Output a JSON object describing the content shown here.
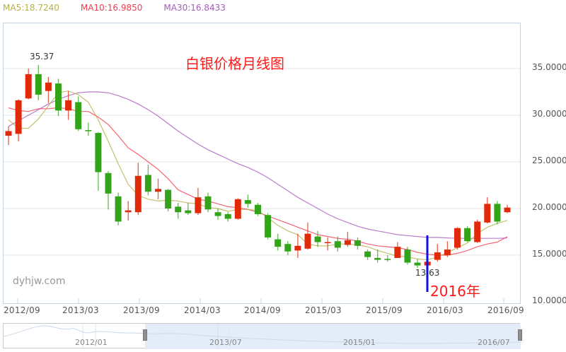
{
  "legend": {
    "ma5": {
      "label": "MA5:18.7240",
      "color": "#b5b04a"
    },
    "ma10": {
      "label": "MA10:16.9850",
      "color": "#f03c50"
    },
    "ma30": {
      "label": "MA30:16.8433",
      "color": "#a65bbd"
    }
  },
  "annotations": {
    "title": "白银价格月线图",
    "high_label": "35.37",
    "low_label": "13.63",
    "year_label": "2016年",
    "watermark": "dyhjw.com"
  },
  "x_axis_labels": [
    "2012/09",
    "2013/03",
    "2013/09",
    "2014/03",
    "2014/09",
    "2015/03",
    "2015/09",
    "2016/03",
    "2016/09"
  ],
  "y_axis_labels": [
    "35.0000",
    "30.0000",
    "25.0000",
    "20.0000",
    "15.0000",
    "10.0000"
  ],
  "navigator": {
    "labels": [
      "2012/01",
      "2013/07",
      "2015/01",
      "2016/07"
    ]
  },
  "colors": {
    "up": "#e02a0a",
    "down": "#33a31a",
    "grid": "#e6e6e6",
    "frame": "#c5d3e0",
    "title": "#ff1a1a",
    "marker": "#0a10e8"
  },
  "chart_data": {
    "type": "candlestick",
    "title": "白银价格月线图",
    "xlabel": "",
    "ylabel": "",
    "ylim": [
      10,
      37
    ],
    "grid": true,
    "x_ticks": [
      "2012/09",
      "2013/03",
      "2013/09",
      "2014/03",
      "2014/09",
      "2015/03",
      "2015/09",
      "2016/03",
      "2016/09"
    ],
    "y_ticks": [
      10,
      15,
      20,
      25,
      30,
      35
    ],
    "legend": [
      "MA5:18.7240",
      "MA10:16.9850",
      "MA30:16.8433"
    ],
    "annotations": [
      {
        "text": "35.37",
        "type": "max"
      },
      {
        "text": "13.63",
        "type": "min"
      },
      {
        "text": "2016年",
        "type": "marker"
      }
    ],
    "candles": [
      {
        "o": 27.8,
        "c": 28.3,
        "h": 28.8,
        "l": 26.8
      },
      {
        "o": 28.0,
        "c": 31.6,
        "h": 31.7,
        "l": 27.2
      },
      {
        "o": 31.8,
        "c": 34.4,
        "h": 35.0,
        "l": 31.7
      },
      {
        "o": 34.4,
        "c": 32.2,
        "h": 35.37,
        "l": 31.6
      },
      {
        "o": 32.6,
        "c": 33.5,
        "h": 34.1,
        "l": 31.3
      },
      {
        "o": 33.4,
        "c": 30.5,
        "h": 33.9,
        "l": 29.9
      },
      {
        "o": 30.5,
        "c": 31.6,
        "h": 32.6,
        "l": 29.5
      },
      {
        "o": 31.4,
        "c": 28.5,
        "h": 32.0,
        "l": 28.3
      },
      {
        "o": 28.4,
        "c": 28.3,
        "h": 29.2,
        "l": 27.8
      },
      {
        "o": 28.1,
        "c": 23.9,
        "h": 28.2,
        "l": 21.9
      },
      {
        "o": 23.8,
        "c": 21.6,
        "h": 24.0,
        "l": 19.9
      },
      {
        "o": 21.3,
        "c": 18.6,
        "h": 21.7,
        "l": 18.2
      },
      {
        "o": 19.6,
        "c": 19.8,
        "h": 20.8,
        "l": 18.7
      },
      {
        "o": 19.6,
        "c": 23.5,
        "h": 24.9,
        "l": 19.3
      },
      {
        "o": 23.6,
        "c": 21.8,
        "h": 24.7,
        "l": 21.4
      },
      {
        "o": 21.8,
        "c": 22.1,
        "h": 23.2,
        "l": 21.0
      },
      {
        "o": 22.0,
        "c": 20.0,
        "h": 22.1,
        "l": 19.7
      },
      {
        "o": 20.2,
        "c": 19.6,
        "h": 20.6,
        "l": 18.9
      },
      {
        "o": 19.8,
        "c": 19.5,
        "h": 20.6,
        "l": 19.3
      },
      {
        "o": 19.5,
        "c": 21.2,
        "h": 22.2,
        "l": 19.3
      },
      {
        "o": 21.3,
        "c": 19.9,
        "h": 21.7,
        "l": 19.6
      },
      {
        "o": 19.6,
        "c": 19.2,
        "h": 20.0,
        "l": 18.8
      },
      {
        "o": 19.4,
        "c": 18.9,
        "h": 19.6,
        "l": 18.6
      },
      {
        "o": 18.9,
        "c": 21.0,
        "h": 21.1,
        "l": 18.8
      },
      {
        "o": 20.9,
        "c": 20.5,
        "h": 21.5,
        "l": 20.1
      },
      {
        "o": 20.4,
        "c": 19.4,
        "h": 20.6,
        "l": 19.2
      },
      {
        "o": 19.3,
        "c": 16.9,
        "h": 19.5,
        "l": 16.7
      },
      {
        "o": 16.7,
        "c": 15.9,
        "h": 17.3,
        "l": 15.5
      },
      {
        "o": 16.2,
        "c": 15.4,
        "h": 16.5,
        "l": 15.0
      },
      {
        "o": 15.5,
        "c": 16.0,
        "h": 17.3,
        "l": 14.7
      },
      {
        "o": 15.7,
        "c": 17.3,
        "h": 18.5,
        "l": 15.6
      },
      {
        "o": 17.0,
        "c": 16.4,
        "h": 17.6,
        "l": 15.9
      },
      {
        "o": 16.3,
        "c": 16.4,
        "h": 16.9,
        "l": 15.5
      },
      {
        "o": 16.5,
        "c": 15.8,
        "h": 17.0,
        "l": 15.4
      },
      {
        "o": 16.1,
        "c": 16.6,
        "h": 17.5,
        "l": 15.9
      },
      {
        "o": 16.6,
        "c": 16.0,
        "h": 16.9,
        "l": 15.6
      },
      {
        "o": 15.4,
        "c": 14.8,
        "h": 15.6,
        "l": 14.5
      },
      {
        "o": 14.7,
        "c": 14.5,
        "h": 15.6,
        "l": 14.2
      },
      {
        "o": 14.6,
        "c": 14.5,
        "h": 15.0,
        "l": 14.3
      },
      {
        "o": 14.7,
        "c": 15.9,
        "h": 16.4,
        "l": 14.7
      },
      {
        "o": 15.6,
        "c": 14.2,
        "h": 15.9,
        "l": 14.0
      },
      {
        "o": 14.2,
        "c": 13.9,
        "h": 14.6,
        "l": 13.63
      },
      {
        "o": 13.9,
        "c": 14.3,
        "h": 14.8,
        "l": 13.8
      },
      {
        "o": 14.5,
        "c": 15.3,
        "h": 16.2,
        "l": 14.3
      },
      {
        "o": 15.0,
        "c": 15.6,
        "h": 16.5,
        "l": 14.8
      },
      {
        "o": 15.8,
        "c": 17.9,
        "h": 18.0,
        "l": 15.6
      },
      {
        "o": 17.9,
        "c": 16.5,
        "h": 18.1,
        "l": 16.4
      },
      {
        "o": 16.4,
        "c": 18.6,
        "h": 18.8,
        "l": 16.3
      },
      {
        "o": 18.5,
        "c": 20.5,
        "h": 21.2,
        "l": 18.4
      },
      {
        "o": 20.5,
        "c": 18.6,
        "h": 20.8,
        "l": 18.3
      },
      {
        "o": 19.6,
        "c": 20.1,
        "h": 20.4,
        "l": 19.5
      }
    ],
    "series": [
      {
        "name": "MA5",
        "color": "#b5b04a",
        "values": [
          29.5,
          28.6,
          28.6,
          29.6,
          31.0,
          32.4,
          32.6,
          32.2,
          31.4,
          29.5,
          27.2,
          24.8,
          22.6,
          21.4,
          21.0,
          20.8,
          20.9,
          20.8,
          20.6,
          20.5,
          20.1,
          20.0,
          19.7,
          19.9,
          19.9,
          19.8,
          19.0,
          18.2,
          17.6,
          17.2,
          16.2,
          16.0,
          16.0,
          16.2,
          16.2,
          16.1,
          15.9,
          15.5,
          15.2,
          14.9,
          14.8,
          14.6,
          14.5,
          14.8,
          15.3,
          15.8,
          16.3,
          17.3,
          18.0,
          18.4,
          18.72
        ]
      },
      {
        "name": "MA10",
        "color": "#f03c50",
        "values": [
          30.8,
          30.5,
          30.4,
          30.7,
          30.7,
          30.8,
          30.7,
          30.4,
          30.4,
          29.8,
          29.0,
          27.8,
          26.5,
          25.8,
          25.0,
          24.2,
          23.2,
          22.0,
          21.5,
          21.0,
          20.8,
          20.5,
          20.2,
          20.1,
          19.9,
          19.6,
          19.2,
          18.8,
          18.4,
          18.0,
          17.6,
          17.2,
          17.0,
          16.8,
          16.7,
          16.5,
          16.2,
          16.0,
          15.9,
          15.8,
          15.6,
          15.3,
          15.1,
          15.0,
          15.0,
          15.2,
          15.5,
          15.9,
          16.2,
          16.4,
          16.98
        ]
      },
      {
        "name": "MA30",
        "color": "#a65bbd",
        "values": [
          28.8,
          29.4,
          30.0,
          30.6,
          31.2,
          31.7,
          32.1,
          32.4,
          32.5,
          32.5,
          32.4,
          32.1,
          31.7,
          31.2,
          30.6,
          29.9,
          29.1,
          28.3,
          27.6,
          26.9,
          26.3,
          25.8,
          25.3,
          24.8,
          24.4,
          23.9,
          23.3,
          22.6,
          21.9,
          21.2,
          20.6,
          20.0,
          19.4,
          18.9,
          18.5,
          18.1,
          17.8,
          17.6,
          17.4,
          17.2,
          17.1,
          17.0,
          16.9,
          16.9,
          16.85,
          16.8,
          16.8,
          16.8,
          16.8,
          16.8,
          16.84
        ]
      }
    ]
  }
}
